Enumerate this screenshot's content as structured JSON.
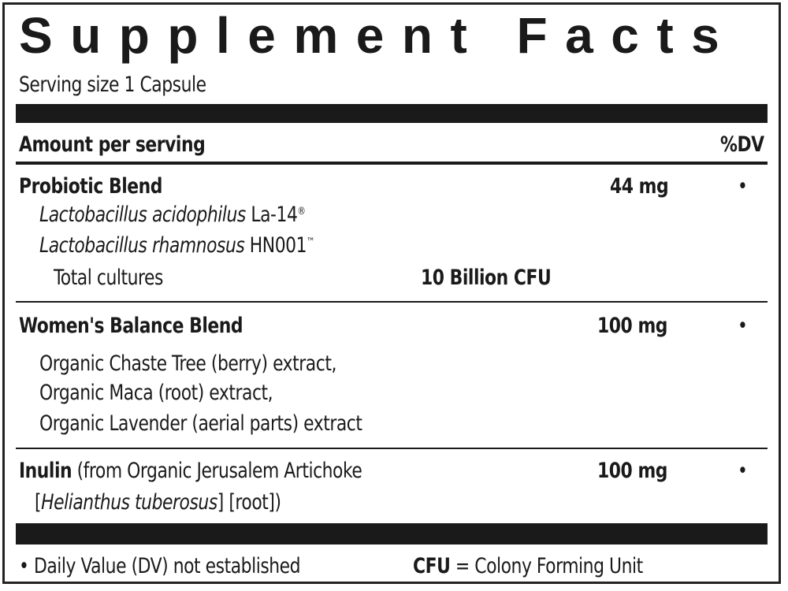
{
  "title": "Supplement Facts",
  "serving_size": "Serving size 1 Capsule",
  "header": {
    "amount": "Amount per serving",
    "dv": "%DV"
  },
  "probiotic": {
    "name": "Probiotic Blend",
    "amount": "44 mg",
    "dv": "•",
    "strains": [
      {
        "species": "Lactobacillus acidophilus",
        "strain": "La-14",
        "mark": "®"
      },
      {
        "species": "Lactobacillus rhamnosus",
        "strain": "HN001",
        "mark": "™"
      }
    ],
    "total_label": "Total cultures",
    "total_value": "10 Billion CFU"
  },
  "womens": {
    "name": "Women's Balance Blend",
    "amount": "100 mg",
    "dv": "•",
    "ingredients": [
      "Organic Chaste Tree (berry) extract,",
      "Organic Maca (root) extract,",
      "Organic Lavender (aerial parts) extract"
    ]
  },
  "inulin": {
    "name": "Inulin",
    "source": " (from Organic Jerusalem Artichoke",
    "line2_open": "[",
    "latin": "Helianthus tuberosus",
    "line2_close": "] [root])",
    "amount": "100 mg",
    "dv": "•"
  },
  "footer": {
    "note": "• Daily Value (DV) not established",
    "cfu_abbr": "CFU",
    "cfu_def": " = Colony Forming Unit"
  }
}
